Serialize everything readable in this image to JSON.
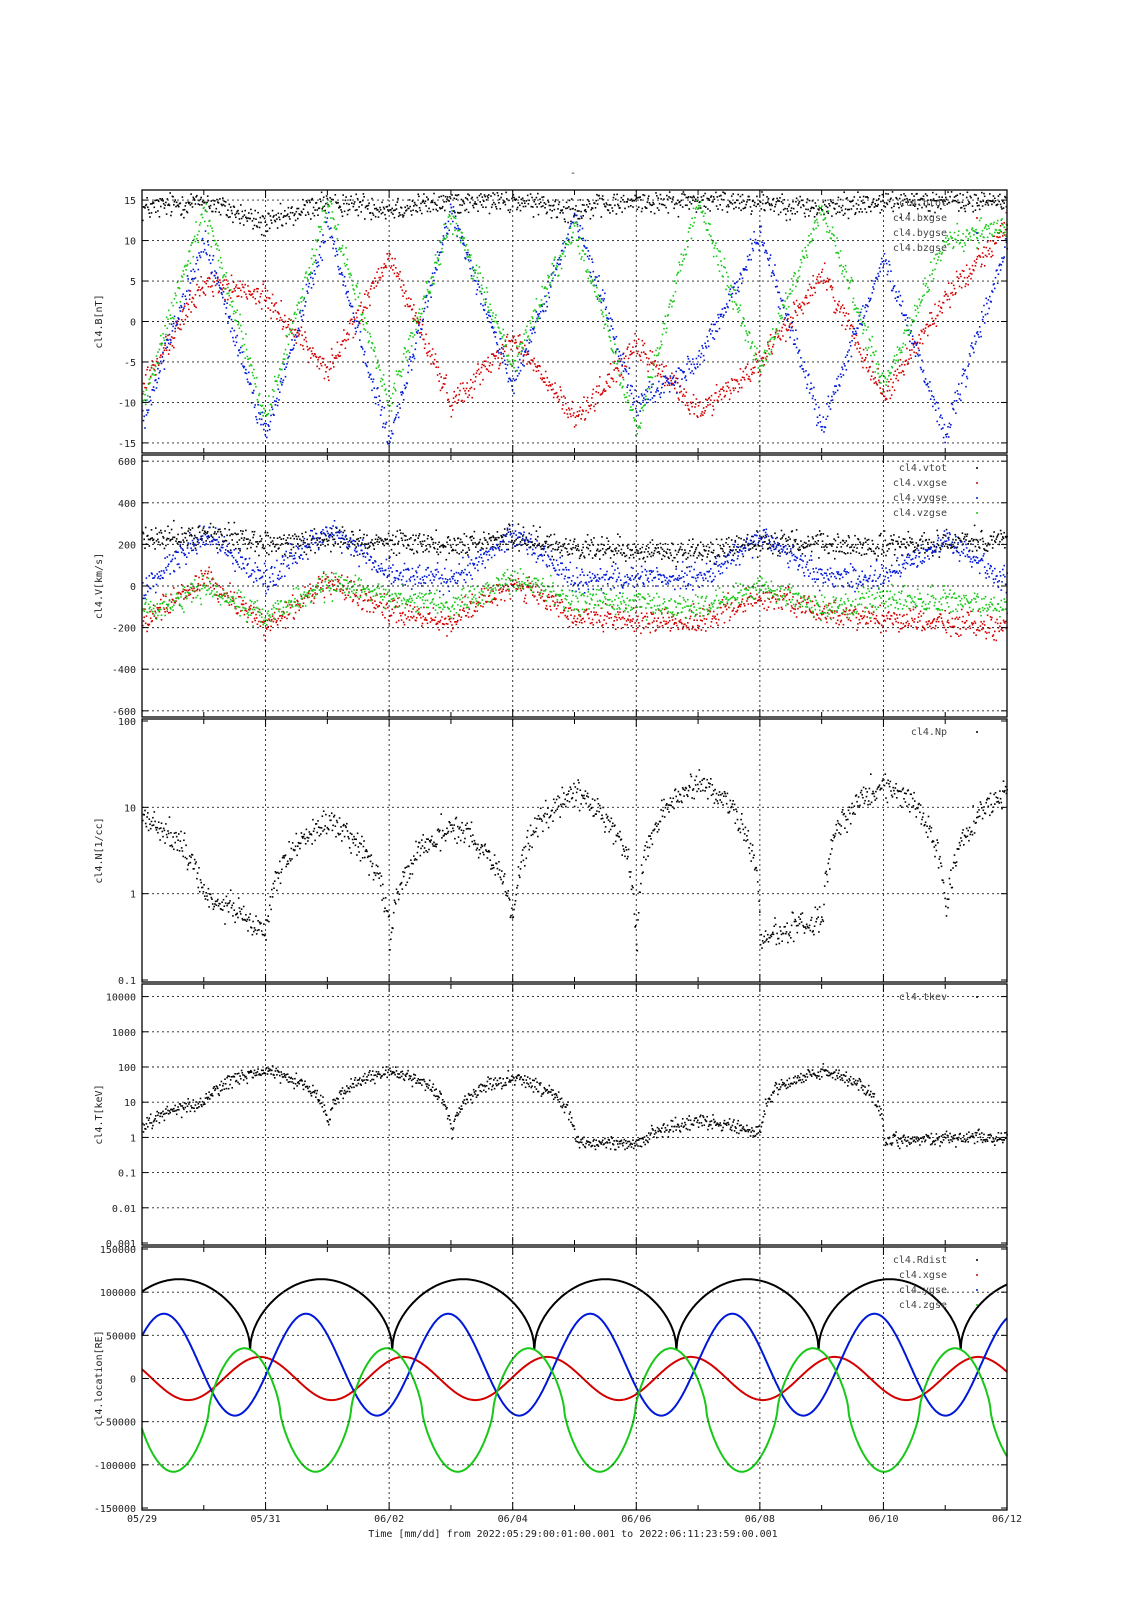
{
  "figure": {
    "title": "-",
    "xlabel": "Time [mm/dd]  from 2022:05:29:00:01:00.001  to  2022:06:11:23:59:00.001",
    "x_ticks": [
      "05/29",
      "05/31",
      "06/02",
      "06/04",
      "06/06",
      "06/08",
      "06/10",
      "06/12"
    ],
    "x_range_days": [
      "2022-05-29",
      "2022-06-12"
    ]
  },
  "colors": {
    "black": "#000000",
    "red": "#d40000",
    "blue": "#0018d8",
    "green": "#18c818"
  },
  "chart_data": [
    {
      "type": "scatter",
      "ylabel": "cl4.B[nT]",
      "ylim": [
        -16,
        16
      ],
      "yscale": "linear",
      "yticks": [
        15,
        10,
        5,
        0,
        -5,
        -10,
        -15
      ],
      "grid": true,
      "legend_placement": "top-right",
      "series": [
        {
          "name": "cl4.btot",
          "color": "black"
        },
        {
          "name": "cl4.bxgse",
          "color": "red"
        },
        {
          "name": "cl4.bygse",
          "color": "blue"
        },
        {
          "name": "cl4.bzgse",
          "color": "green"
        }
      ],
      "levels": {
        "x": [
          "05/29",
          "05/30",
          "05/31",
          "06/01",
          "06/02",
          "06/03",
          "06/04",
          "06/05",
          "06/06",
          "06/07",
          "06/08",
          "06/09",
          "06/10",
          "06/11",
          "06/12"
        ],
        "cl4.btot": [
          14,
          15,
          12,
          15,
          14,
          15,
          15,
          14,
          15,
          15,
          15,
          14,
          15,
          15,
          15
        ],
        "cl4.bxgse": [
          -8,
          5,
          3,
          -6,
          8,
          -10,
          -2,
          -12,
          -3,
          -11,
          -5,
          6,
          -9,
          3,
          12
        ],
        "cl4.bygse": [
          -12,
          10,
          -14,
          12,
          -15,
          14,
          -8,
          13,
          -10,
          -5,
          11,
          -13,
          8,
          -14,
          10
        ],
        "cl4.bzgse": [
          -10,
          14,
          -12,
          15,
          -10,
          13,
          -5,
          12,
          -13,
          15,
          -6,
          14,
          -8,
          10,
          12
        ]
      }
    },
    {
      "type": "scatter",
      "ylabel": "cl4.V[km/s]",
      "ylim": [
        -620,
        620
      ],
      "yscale": "linear",
      "yticks": [
        600,
        400,
        200,
        0,
        -200,
        -400,
        -600
      ],
      "grid": true,
      "legend_placement": "top-right",
      "series": [
        {
          "name": "cl4.vtot",
          "color": "black"
        },
        {
          "name": "cl4.vxgse",
          "color": "red"
        },
        {
          "name": "cl4.vygse",
          "color": "blue"
        },
        {
          "name": "cl4.vzgse",
          "color": "green"
        }
      ],
      "levels": {
        "x": [
          "05/29",
          "05/30",
          "05/31",
          "06/01",
          "06/02",
          "06/03",
          "06/04",
          "06/05",
          "06/06",
          "06/07",
          "06/08",
          "06/09",
          "06/10",
          "06/11",
          "06/12"
        ],
        "cl4.vtot": [
          220,
          260,
          210,
          230,
          220,
          200,
          240,
          180,
          170,
          160,
          220,
          200,
          190,
          220,
          230
        ],
        "cl4.vxgse": [
          -170,
          40,
          -190,
          30,
          -120,
          -160,
          20,
          -150,
          -160,
          -170,
          -40,
          -120,
          -150,
          -170,
          -200
        ],
        "cl4.vygse": [
          -10,
          250,
          30,
          280,
          60,
          30,
          250,
          30,
          50,
          40,
          240,
          50,
          40,
          230,
          20
        ],
        "cl4.vzgse": [
          -130,
          0,
          -140,
          20,
          -40,
          -90,
          40,
          -60,
          -80,
          -100,
          0,
          -100,
          -60,
          -70,
          -100
        ]
      }
    },
    {
      "type": "scatter",
      "ylabel": "cl4.N[1/cc]",
      "ylim": [
        0.1,
        100
      ],
      "yscale": "log",
      "yticks": [
        "100",
        "10",
        "1",
        "0.1"
      ],
      "grid": true,
      "legend_placement": "top-right",
      "series": [
        {
          "name": "cl4.Np",
          "color": "black"
        }
      ],
      "levels": {
        "x": [
          "05/29",
          "05/30",
          "05/31",
          "06/01",
          "06/02",
          "06/03",
          "06/04",
          "06/05",
          "06/06",
          "06/07",
          "06/08",
          "06/09",
          "06/10",
          "06/11",
          "06/12"
        ],
        "cl4.Np": [
          8,
          1,
          0.3,
          7,
          0.3,
          6,
          0.5,
          15,
          0.15,
          20,
          0.3,
          0.5,
          20,
          0.5,
          15
        ]
      }
    },
    {
      "type": "scatter",
      "ylabel": "cl4.T[keV]",
      "ylim": [
        0.001,
        20000
      ],
      "yscale": "log",
      "yticks": [
        "10000",
        "1000",
        "100",
        "10",
        "1",
        "0.1",
        "0.01",
        "0.001"
      ],
      "grid": true,
      "legend_placement": "top-right",
      "series": [
        {
          "name": "cl4.tkev",
          "color": "black"
        }
      ],
      "levels": {
        "x": [
          "05/29",
          "05/30",
          "05/31",
          "06/01",
          "06/02",
          "06/03",
          "06/04",
          "06/05",
          "06/06",
          "06/07",
          "06/08",
          "06/09",
          "06/10",
          "06/11",
          "06/12"
        ],
        "cl4.tkev": [
          2,
          10,
          80,
          2,
          80,
          1,
          50,
          0.8,
          0.7,
          3,
          1.5,
          80,
          0.8,
          1,
          1
        ]
      }
    },
    {
      "type": "line",
      "ylabel": "cl4.location[RE]",
      "ylim": [
        -150000,
        150000
      ],
      "yscale": "linear",
      "yticks": [
        150000,
        100000,
        50000,
        0,
        -50000,
        -100000,
        -150000
      ],
      "grid": true,
      "legend_placement": "top-right",
      "series": [
        {
          "name": "cl4.Rdist",
          "color": "black"
        },
        {
          "name": "cl4.xgse",
          "color": "red"
        },
        {
          "name": "cl4.ygse",
          "color": "blue"
        },
        {
          "name": "cl4.zgse",
          "color": "green"
        }
      ],
      "orbit": {
        "period_days": 2.3,
        "perigee_days": [
          1.75,
          3.95,
          6.15,
          8.35,
          10.55,
          12.75
        ],
        "rdist_max": 115000,
        "rdist_min": 33000,
        "xgse_amplitude": 25000,
        "ygse_range": [
          -43000,
          75000
        ],
        "zgse_range": [
          -108000,
          35000
        ]
      }
    }
  ]
}
